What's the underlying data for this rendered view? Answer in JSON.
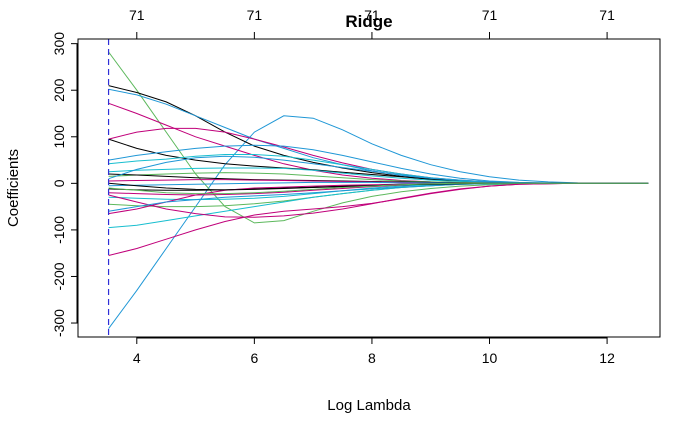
{
  "chart_data": {
    "type": "line",
    "title": "Ridge",
    "xlabel": "Log Lambda",
    "ylabel": "Coefficients",
    "xlim": [
      3.0,
      12.9
    ],
    "ylim": [
      -330,
      310
    ],
    "x_ticks": [
      4,
      6,
      8,
      10,
      12
    ],
    "y_ticks": [
      -300,
      -200,
      -100,
      0,
      100,
      200,
      300
    ],
    "top_axis": {
      "positions": [
        4,
        6,
        8,
        10,
        12
      ],
      "labels": [
        "71",
        "71",
        "71",
        "71",
        "71"
      ]
    },
    "vline": {
      "x": 3.52,
      "color": "#2f2fd8",
      "style": "dashed"
    },
    "grid": false,
    "x": [
      3.52,
      4.0,
      4.5,
      5.0,
      5.5,
      6.0,
      6.5,
      7.0,
      7.5,
      8.0,
      8.5,
      9.0,
      9.5,
      10.0,
      10.5,
      11.0,
      11.5,
      12.0,
      12.7
    ],
    "series": [
      {
        "color": "#1f97d6",
        "values": [
          -312,
          -230,
          -140,
          -50,
          40,
          110,
          145,
          140,
          115,
          85,
          60,
          40,
          25,
          14,
          7,
          3,
          1,
          0.5,
          0
        ]
      },
      {
        "color": "#5cb85c",
        "values": [
          282,
          200,
          110,
          20,
          -50,
          -85,
          -80,
          -60,
          -42,
          -28,
          -18,
          -11,
          -6,
          -3,
          -1,
          -0.5,
          0,
          0,
          0
        ]
      },
      {
        "color": "#000000",
        "values": [
          210,
          195,
          175,
          145,
          110,
          80,
          60,
          45,
          33,
          23,
          15,
          9,
          5,
          2.5,
          1,
          0.5,
          0,
          0,
          0
        ]
      },
      {
        "color": "#1f97d6",
        "values": [
          202,
          190,
          170,
          145,
          120,
          95,
          75,
          55,
          40,
          27,
          17,
          10,
          6,
          3,
          1,
          0.5,
          0,
          0,
          0
        ]
      },
      {
        "color": "#c0007a",
        "values": [
          172,
          150,
          125,
          100,
          80,
          60,
          42,
          28,
          18,
          11,
          6,
          3,
          1.5,
          0.5,
          0,
          0,
          0,
          0,
          0
        ]
      },
      {
        "color": "#c0007a",
        "values": [
          95,
          110,
          118,
          118,
          110,
          95,
          78,
          60,
          44,
          30,
          20,
          12,
          7,
          3,
          1,
          0.5,
          0,
          0,
          0
        ]
      },
      {
        "color": "#000000",
        "values": [
          95,
          75,
          60,
          50,
          42,
          37,
          33,
          29,
          24,
          19,
          14,
          9,
          5,
          2.5,
          1,
          0.5,
          0,
          0,
          0
        ]
      },
      {
        "color": "#1f97d6",
        "values": [
          50,
          60,
          68,
          75,
          80,
          82,
          80,
          72,
          60,
          46,
          32,
          20,
          11,
          5,
          2,
          1,
          0,
          0,
          0
        ]
      },
      {
        "color": "#17becf",
        "values": [
          42,
          48,
          52,
          58,
          62,
          62,
          58,
          50,
          40,
          30,
          20,
          12,
          7,
          3,
          1,
          0.5,
          0,
          0,
          0
        ]
      },
      {
        "color": "#17becf",
        "values": [
          25,
          28,
          30,
          32,
          33,
          33,
          32,
          28,
          22,
          16,
          11,
          7,
          4,
          2,
          1,
          0,
          0,
          0,
          0
        ]
      },
      {
        "color": "#5cb85c",
        "values": [
          15,
          18,
          20,
          22,
          23,
          22,
          20,
          16,
          12,
          8,
          5,
          3,
          2,
          1,
          0,
          0,
          0,
          0,
          0
        ]
      },
      {
        "color": "#000000",
        "values": [
          20,
          18,
          15,
          12,
          10,
          8,
          7,
          6,
          5,
          4,
          3,
          2,
          1,
          0.5,
          0,
          0,
          0,
          0,
          0
        ]
      },
      {
        "color": "#c0007a",
        "values": [
          5,
          6,
          7,
          8,
          8,
          7,
          6,
          5,
          4,
          3,
          2,
          1,
          0.5,
          0,
          0,
          0,
          0,
          0,
          0
        ]
      },
      {
        "color": "#1f97d6",
        "values": [
          -5,
          -4,
          -3,
          -2,
          -1,
          0,
          1,
          2,
          2,
          2,
          1,
          1,
          0.5,
          0,
          0,
          0,
          0,
          0,
          0
        ]
      },
      {
        "color": "#000000",
        "values": [
          -12,
          -14,
          -15,
          -15,
          -14,
          -12,
          -10,
          -8,
          -6,
          -4,
          -2,
          -1,
          0,
          0,
          0,
          0,
          0,
          0,
          0
        ]
      },
      {
        "color": "#c0007a",
        "values": [
          -20,
          -22,
          -24,
          -25,
          -24,
          -22,
          -19,
          -15,
          -11,
          -7,
          -4,
          -2,
          -1,
          0,
          0,
          0,
          0,
          0,
          0
        ]
      },
      {
        "color": "#17becf",
        "values": [
          -30,
          -32,
          -34,
          -35,
          -34,
          -32,
          -28,
          -22,
          -16,
          -10,
          -6,
          -3,
          -1,
          0,
          0,
          0,
          0,
          0,
          0
        ]
      },
      {
        "color": "#5cb85c",
        "values": [
          -45,
          -48,
          -50,
          -50,
          -48,
          -44,
          -38,
          -30,
          -22,
          -15,
          -9,
          -5,
          -2,
          -1,
          0,
          0,
          0,
          0,
          0
        ]
      },
      {
        "color": "#c0007a",
        "values": [
          -65,
          -55,
          -40,
          -25,
          -15,
          -10,
          -8,
          -6,
          -4,
          -3,
          -2,
          -1,
          0,
          0,
          0,
          0,
          0,
          0,
          0
        ]
      },
      {
        "color": "#17becf",
        "values": [
          -95,
          -90,
          -80,
          -70,
          -60,
          -50,
          -40,
          -30,
          -22,
          -15,
          -9,
          -5,
          -2,
          -1,
          0,
          0,
          0,
          0,
          0
        ]
      },
      {
        "color": "#c0007a",
        "values": [
          -25,
          -40,
          -55,
          -65,
          -72,
          -73,
          -70,
          -64,
          -55,
          -44,
          -32,
          -21,
          -12,
          -6,
          -2,
          -1,
          0,
          0,
          0
        ]
      },
      {
        "color": "#1f97d6",
        "values": [
          -60,
          -50,
          -40,
          -35,
          -30,
          -27,
          -24,
          -20,
          -16,
          -12,
          -8,
          -5,
          -2,
          -1,
          0,
          0,
          0,
          0,
          0
        ]
      },
      {
        "color": "#c0007a",
        "values": [
          -155,
          -140,
          -120,
          -100,
          -82,
          -68,
          -60,
          -55,
          -50,
          -43,
          -33,
          -22,
          -13,
          -6,
          -2,
          -1,
          0,
          0,
          0
        ]
      },
      {
        "color": "#1f97d6",
        "values": [
          10,
          30,
          45,
          55,
          58,
          56,
          50,
          42,
          34,
          26,
          18,
          11,
          6,
          3,
          1,
          0,
          0,
          0,
          0
        ]
      },
      {
        "color": "#000000",
        "values": [
          0,
          -5,
          -10,
          -13,
          -14,
          -13,
          -11,
          -9,
          -7,
          -5,
          -3,
          -2,
          -1,
          0,
          0,
          0,
          0,
          0,
          0
        ]
      },
      {
        "color": "#5cb85c",
        "values": [
          -10,
          -15,
          -20,
          -22,
          -22,
          -20,
          -17,
          -13,
          -9,
          -6,
          -3,
          -1,
          0,
          0,
          0,
          0,
          0,
          0,
          0
        ]
      }
    ]
  }
}
